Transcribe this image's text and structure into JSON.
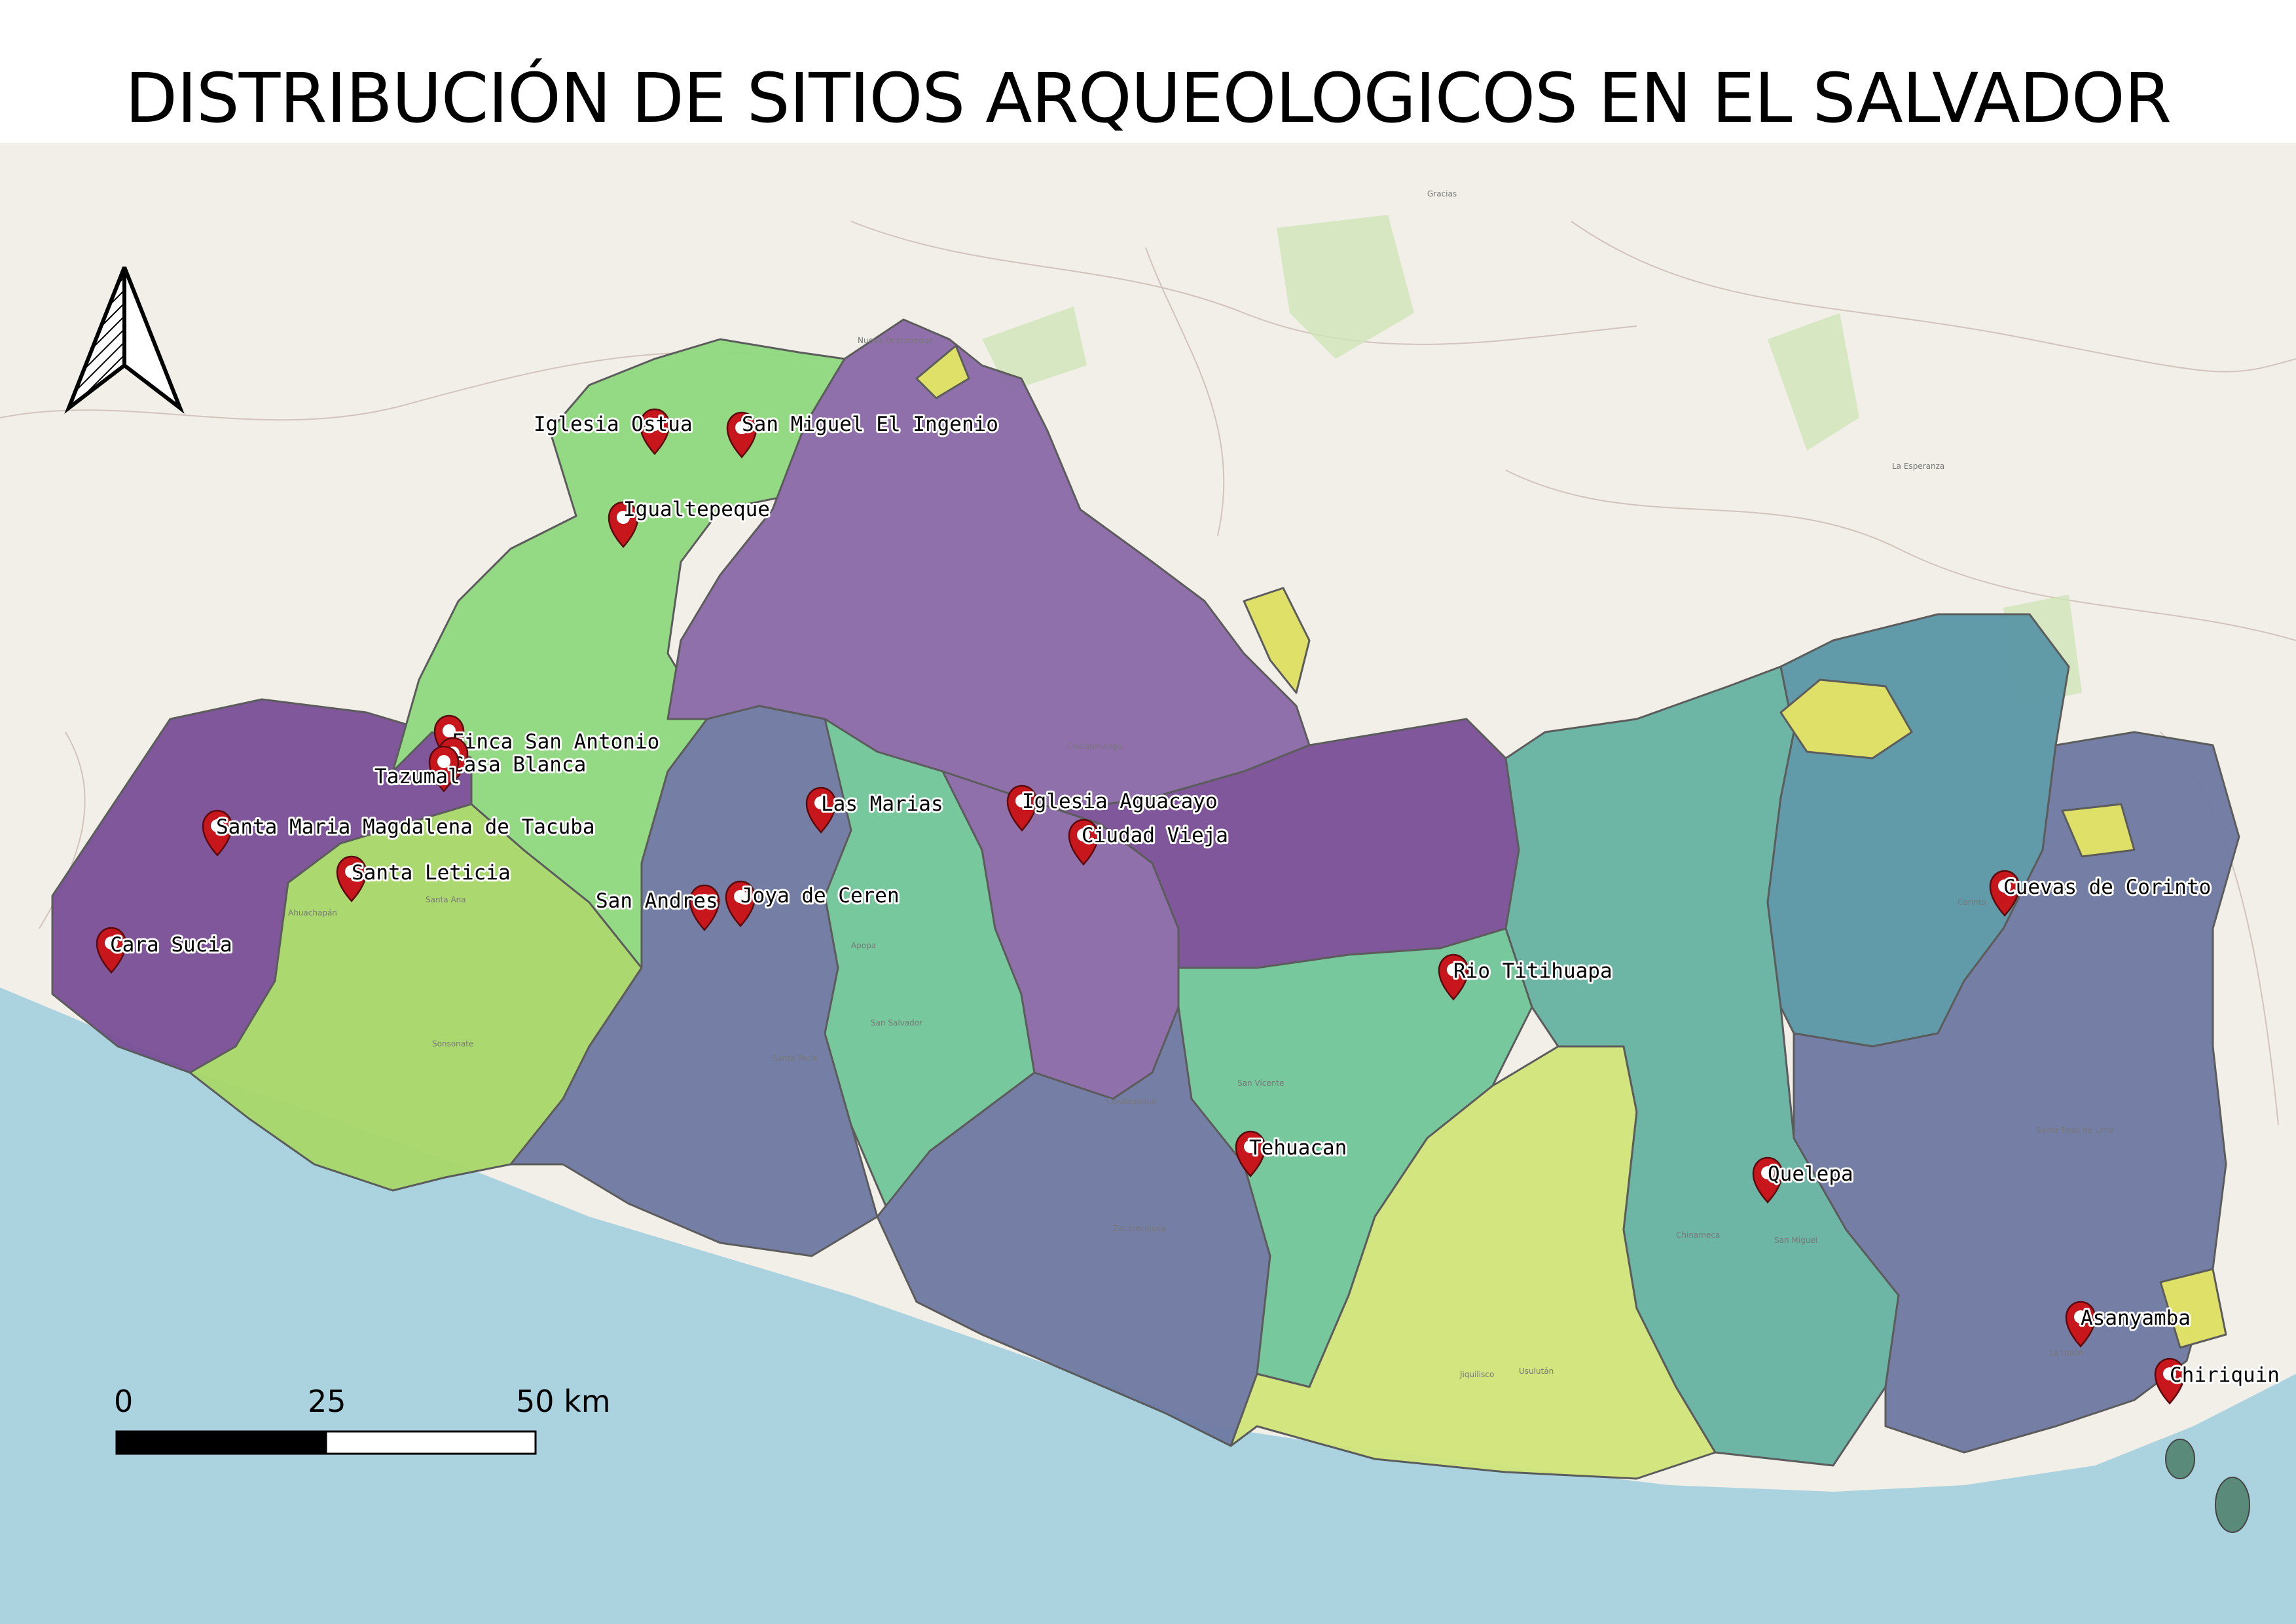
{
  "title": "DISTRIBUCIÓN DE SITIOS ARQUEOLOGICOS EN EL SALVADOR",
  "colors": {
    "sea": "#aad3df",
    "land_bg": "#f2efe9",
    "purple": "#7a4f97",
    "violet": "#8b6aa8",
    "slate": "#6f7aa3",
    "light_green": "#8fd97f",
    "lime_green": "#a8d86a",
    "teal": "#66b3a3",
    "mint": "#72c69a",
    "blue_teal": "#5a97a6",
    "yellow_green": "#d2e579",
    "yellow": "#dde062",
    "marker": "#c8161d"
  },
  "north_arrow_icon": "north-arrow-icon",
  "marker_icon": "map-pin-icon",
  "scale_bar": {
    "labels": [
      "0",
      "25",
      "50 km"
    ]
  },
  "sites": [
    {
      "name": "Iglesia Ostua"
    },
    {
      "name": "San Miguel El Ingenio"
    },
    {
      "name": "Igualtepeque"
    },
    {
      "name": "Finca San Antonio"
    },
    {
      "name": "Casa Blanca"
    },
    {
      "name": "Tazumal"
    },
    {
      "name": "Santa Maria Magdalena de Tacuba"
    },
    {
      "name": "Santa Leticia"
    },
    {
      "name": "Cara Sucia"
    },
    {
      "name": "Las Marias"
    },
    {
      "name": "Iglesia Aguacayo"
    },
    {
      "name": "Ciudad Vieja"
    },
    {
      "name": "San Andres"
    },
    {
      "name": "Joya de Ceren"
    },
    {
      "name": "Rio Titihuapa"
    },
    {
      "name": "Cuevas de Corinto"
    },
    {
      "name": "Tehuacan"
    },
    {
      "name": "Quelepa"
    },
    {
      "name": "Asanyamba"
    },
    {
      "name": "Chiriquin"
    }
  ],
  "basemap_labels": [
    "Gracias",
    "Nueva Ocotepeque",
    "La Esperanza",
    "San Salvador",
    "Santa Tecla",
    "San Miguel",
    "Sonsonate",
    "Zacatecoluca",
    "Usulután",
    "San Vicente",
    "Chalatenango",
    "Cojutepeque",
    "La Unión",
    "Ahuachapán",
    "Santa Ana",
    "Apopa",
    "Jiquilisco",
    "Chinameca",
    "Santa Rosa de Lima",
    "Corinto"
  ]
}
